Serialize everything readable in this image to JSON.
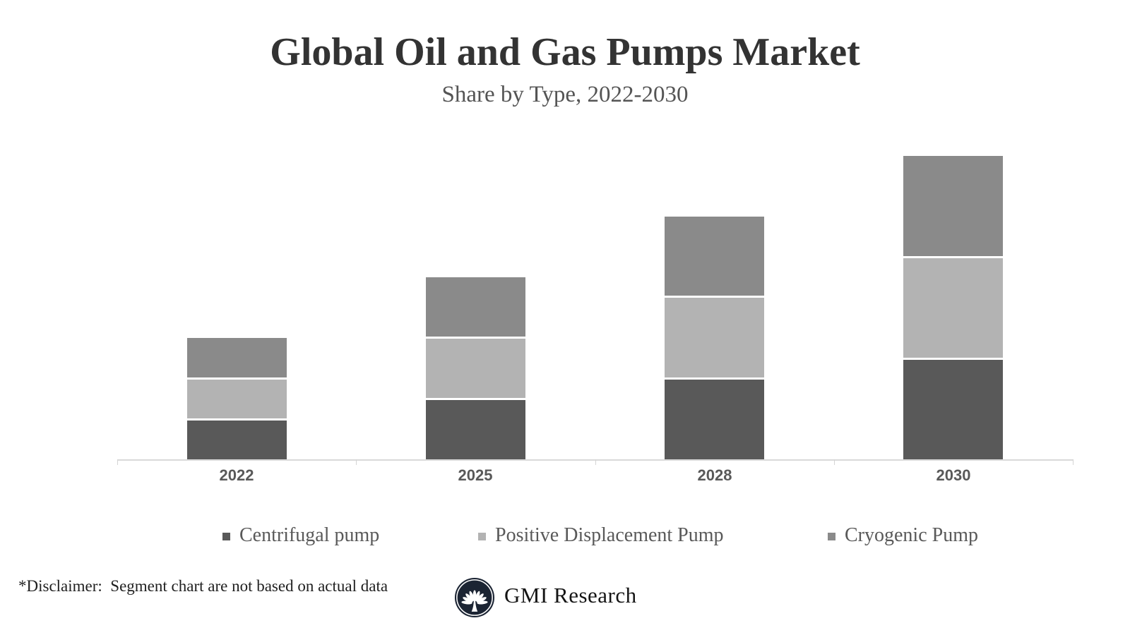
{
  "page": {
    "background": "#ffffff"
  },
  "header": {
    "title": "Global Oil and Gas Pumps Market",
    "subtitle": "Share by Type, 2022-2030"
  },
  "chart_data": {
    "type": "bar",
    "variant": "stacked",
    "title": "Global Oil and Gas Pumps Market",
    "subtitle": "Share by Type, 2022-2030",
    "categories": [
      "2022",
      "2025",
      "2028",
      "2030"
    ],
    "series": [
      {
        "name": "Centrifugal pump",
        "color": "#595959",
        "values": [
          13.3,
          20,
          26.7,
          33.3
        ]
      },
      {
        "name": "Positive Displacement Pump",
        "color": "#b3b3b3",
        "values": [
          13.3,
          20,
          26.7,
          33.3
        ]
      },
      {
        "name": "Cryogenic Pump",
        "color": "#8a8a8a",
        "values": [
          13.3,
          20,
          26.7,
          33.3
        ]
      }
    ],
    "stack_totals": [
      40,
      60,
      80,
      100
    ],
    "stack_order_bottom_to_top": [
      "Centrifugal pump",
      "Positive Displacement Pump",
      "Cryogenic Pump"
    ],
    "value_axis": {
      "visible": false,
      "min": 0,
      "max": 100
    },
    "gridlines": false,
    "legend_position": "bottom",
    "segment_gap_color": "#ffffff",
    "data_note": "Segment chart are not based on actual data (illustrative)"
  },
  "x_axis": {
    "labels": [
      "2022",
      "2025",
      "2028",
      "2030"
    ],
    "line_color": "#d9d9d9",
    "tick_color": "#d4d4d4",
    "label_color": "#595959"
  },
  "legend": {
    "items": [
      {
        "label": "Centrifugal pump",
        "color": "#595959"
      },
      {
        "label": "Positive Displacement Pump",
        "color": "#b3b3b3"
      },
      {
        "label": "Cryogenic Pump",
        "color": "#8a8a8a"
      }
    ]
  },
  "footer": {
    "disclaimer": "*Disclaimer:  Segment chart are not based on actual data",
    "brand": "GMI Research",
    "logo": {
      "icon": "palm-tree-emblem",
      "circle_color": "#1b2433",
      "ring_color": "#ffffff",
      "emblem_color": "#ffffff"
    }
  }
}
